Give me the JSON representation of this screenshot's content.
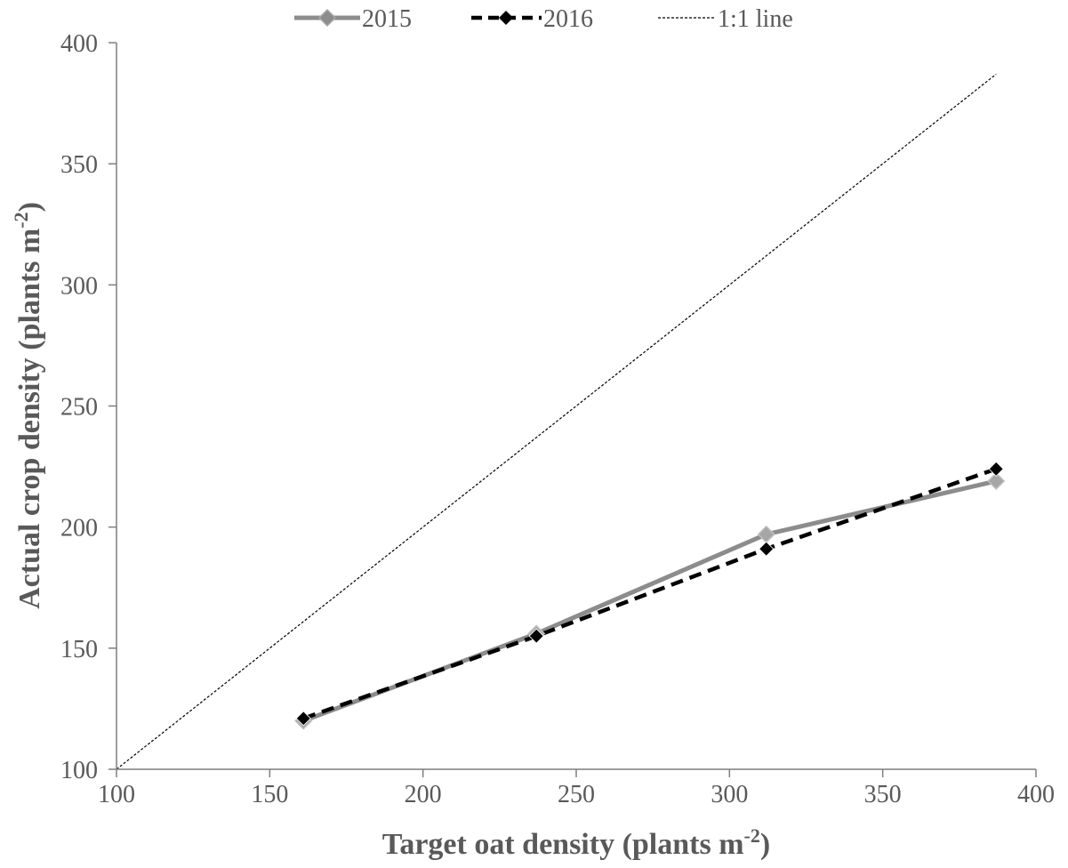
{
  "chart_data": {
    "type": "line",
    "xlabel": "Target oat density (plants m",
    "xlabel_sup": "-2",
    "xlabel_end": ")",
    "ylabel": "Actual crop density (plants m",
    "ylabel_sup": "-2",
    "ylabel_end": ")",
    "xlim": [
      100,
      400
    ],
    "ylim": [
      100,
      400
    ],
    "xticks": [
      100,
      150,
      200,
      250,
      300,
      350,
      400
    ],
    "yticks": [
      100,
      150,
      200,
      250,
      300,
      350,
      400
    ],
    "grid": false,
    "legend_position": "top",
    "series": [
      {
        "name": "2015",
        "x": [
          161,
          237,
          312,
          387
        ],
        "y": [
          120,
          156,
          197,
          219
        ],
        "color": "#8c8c8c",
        "style": "solid",
        "marker": "diamond"
      },
      {
        "name": "2016",
        "x": [
          161,
          237,
          312,
          387
        ],
        "y": [
          121,
          155,
          191,
          224
        ],
        "color": "#000000",
        "style": "dashed",
        "marker": "diamond"
      },
      {
        "name": "1:1 line",
        "x": [
          100,
          387
        ],
        "y": [
          100,
          387
        ],
        "color": "#000000",
        "style": "dotted",
        "marker": "none"
      }
    ]
  }
}
